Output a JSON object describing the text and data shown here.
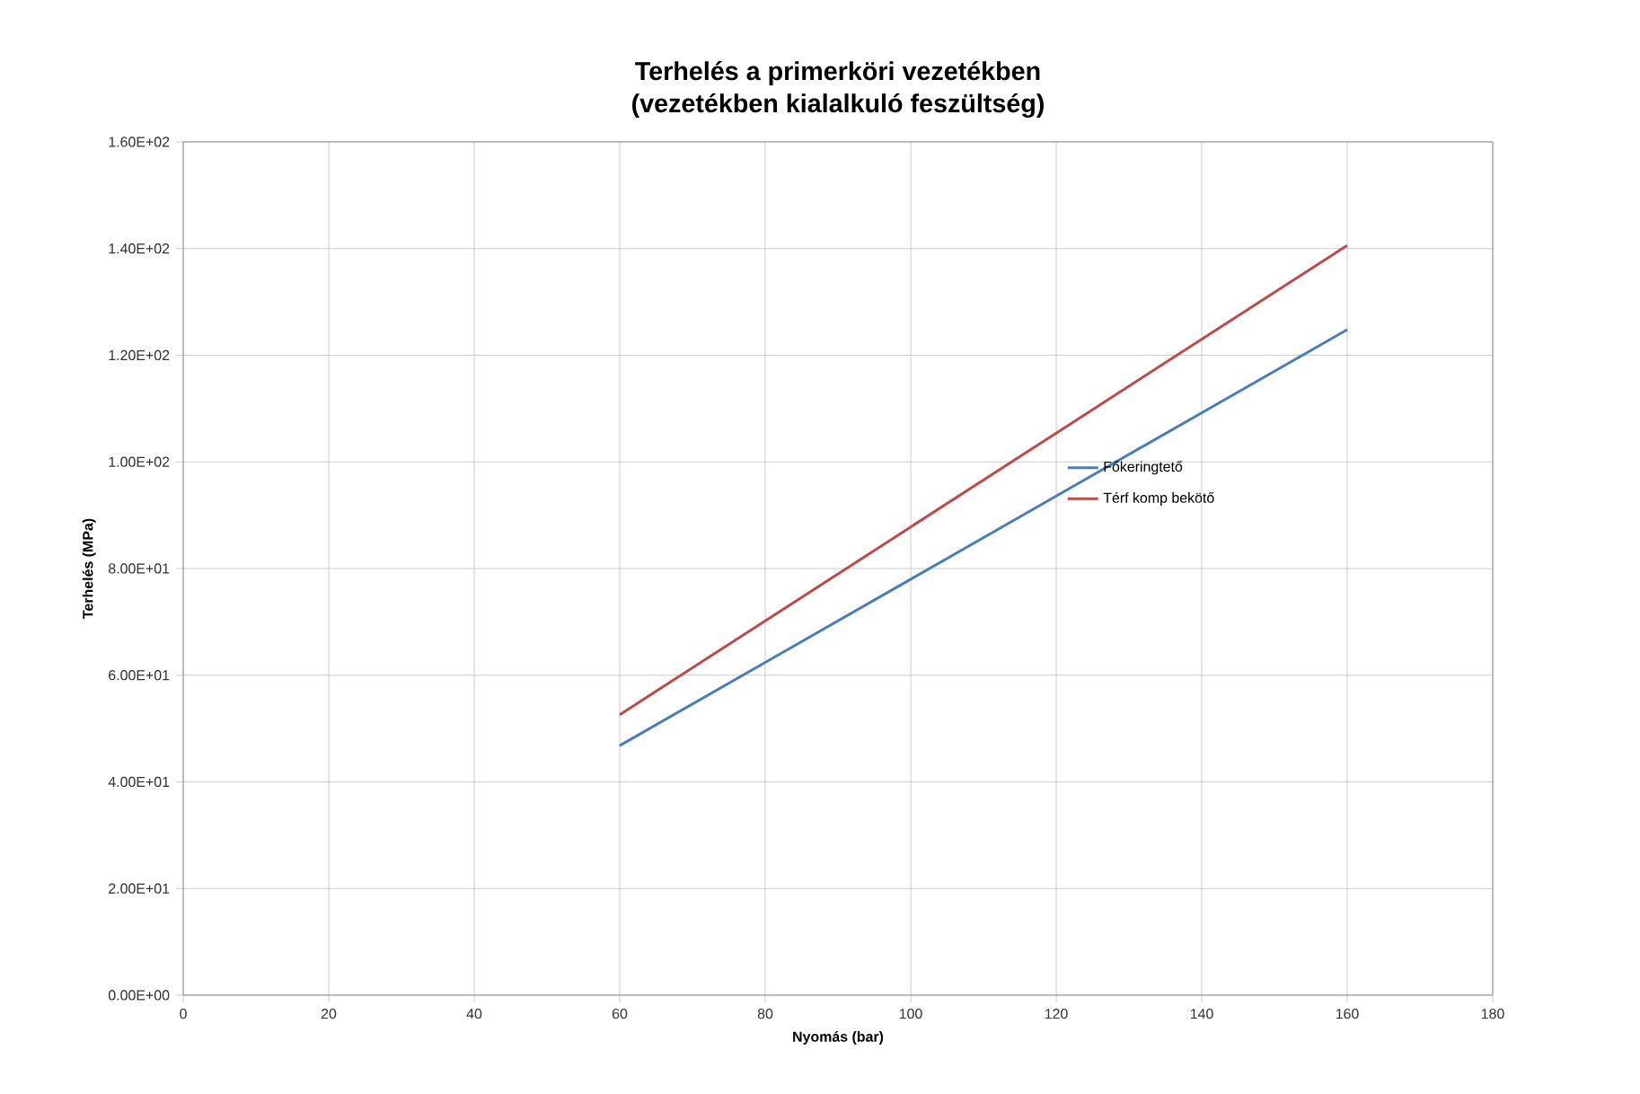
{
  "chart_data": {
    "type": "line",
    "title": "Terhelés a primerköri vezetékben",
    "subtitle": "(vezetékben kialalkuló feszültség)",
    "xlabel": "Nyomás (bar)",
    "ylabel": "Terhelés (MPa)",
    "x": [
      60,
      80,
      100,
      120,
      140,
      160
    ],
    "series": [
      {
        "name": "Főkeringtető",
        "color": "#4a7ebb",
        "values": [
          46.8,
          62.4,
          78.0,
          93.6,
          109.2,
          124.8
        ]
      },
      {
        "name": "Térf komp bekötő",
        "color": "#be4b48",
        "values": [
          52.6,
          70.2,
          87.8,
          105.4,
          123.0,
          140.6
        ]
      }
    ],
    "xlim": [
      0,
      180
    ],
    "xticks": [
      0,
      20,
      40,
      60,
      80,
      100,
      120,
      140,
      160,
      180
    ],
    "ylim": [
      0,
      160
    ],
    "yticks": [
      {
        "value": 0,
        "label": "0.00E+00"
      },
      {
        "value": 20,
        "label": "2.00E+01"
      },
      {
        "value": 40,
        "label": "4.00E+01"
      },
      {
        "value": 60,
        "label": "6.00E+01"
      },
      {
        "value": 80,
        "label": "8.00E+01"
      },
      {
        "value": 100,
        "label": "1.00E+02"
      },
      {
        "value": 120,
        "label": "1.20E+02"
      },
      {
        "value": 140,
        "label": "1.40E+02"
      },
      {
        "value": 160,
        "label": "1.60E+02"
      }
    ],
    "grid": true,
    "legend": "right",
    "marker": "none",
    "line_style": "solid"
  }
}
